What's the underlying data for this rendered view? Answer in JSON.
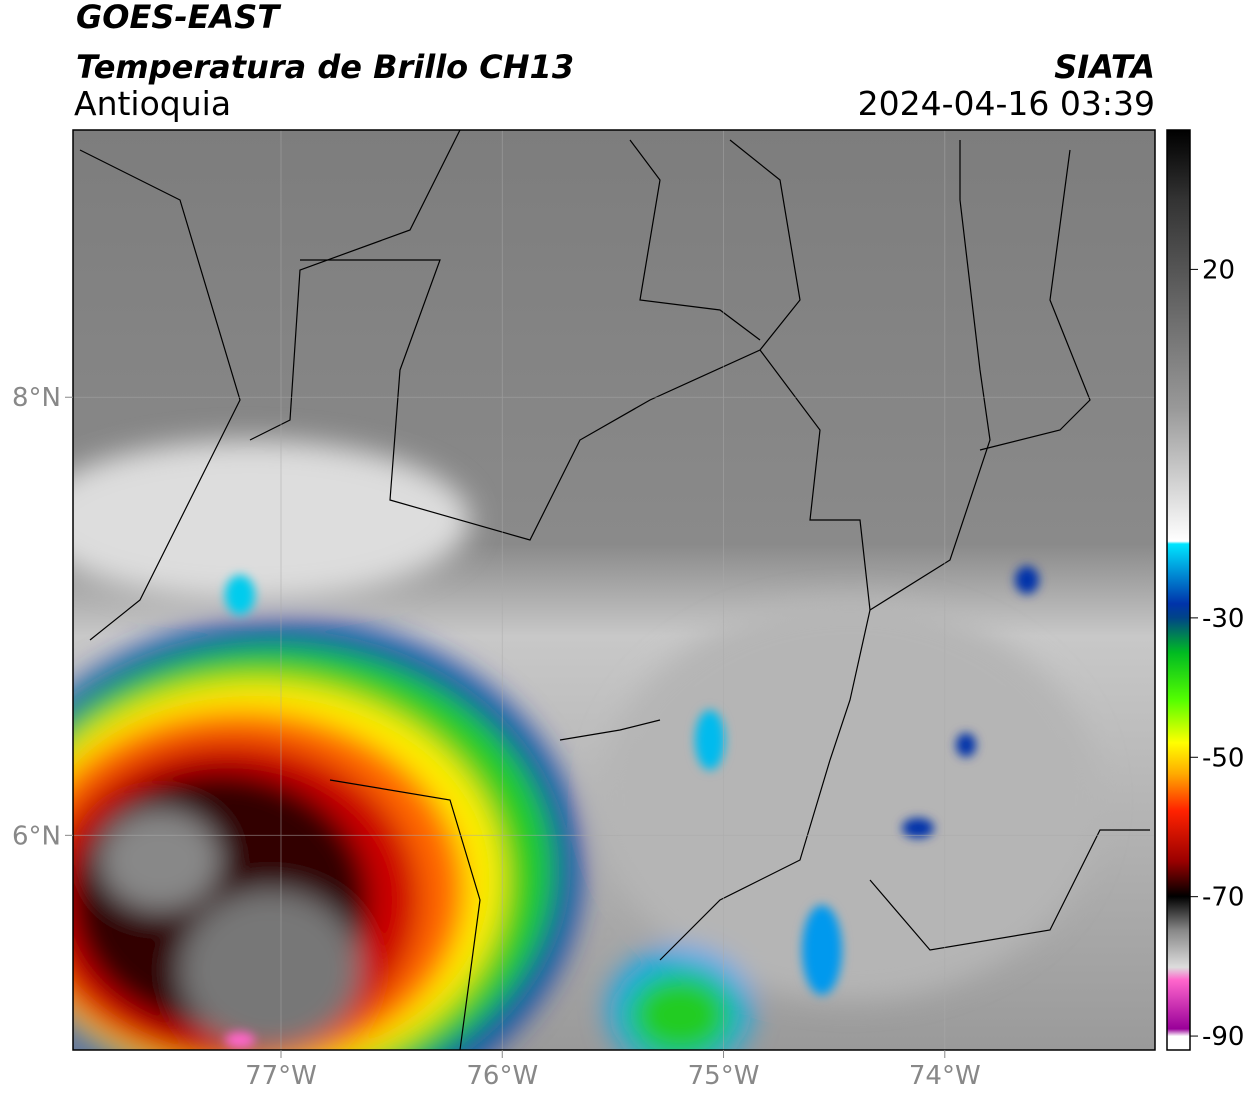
{
  "header": {
    "satellite": "GOES-EAST",
    "product": "Temperatura de Brillo CH13",
    "source": "SIATA",
    "region": "Antioquia",
    "datetime": "2024-04-16 03:39"
  },
  "map": {
    "lon_range": [
      -77.94,
      -73.05
    ],
    "lat_range": [
      5.02,
      9.22
    ],
    "lon_ticks": [
      {
        "value": -77,
        "label": "77°W"
      },
      {
        "value": -76,
        "label": "76°W"
      },
      {
        "value": -75,
        "label": "75°W"
      },
      {
        "value": -74,
        "label": "74°W"
      }
    ],
    "lat_ticks": [
      {
        "value": 8,
        "label": "8°N"
      },
      {
        "value": 6,
        "label": "6°N"
      }
    ]
  },
  "colorbar": {
    "range": [
      -92,
      40
    ],
    "ticks": [
      20,
      -30,
      -50,
      -70,
      -90
    ]
  }
}
